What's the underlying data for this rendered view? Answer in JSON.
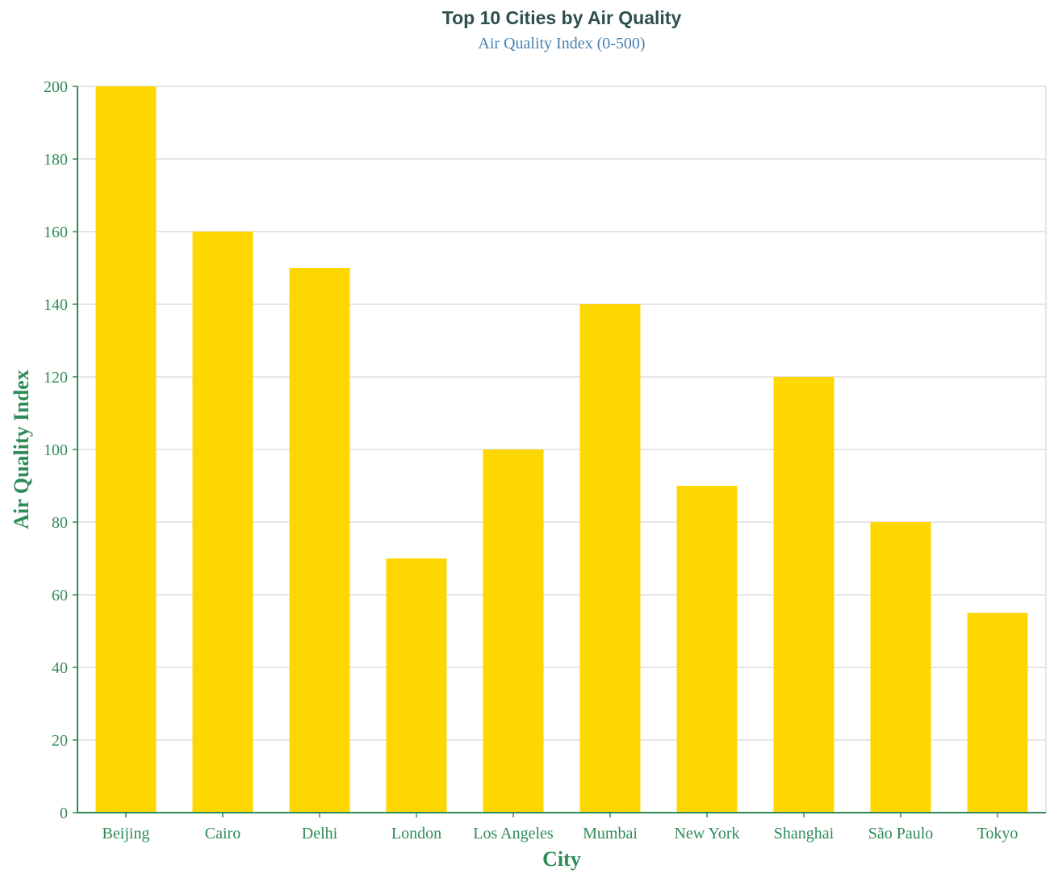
{
  "colors": {
    "title": "#2f4f4f",
    "subtitle": "#4682b4",
    "axis": "#2e8b57",
    "grid": "#dddddd",
    "bar": "#ffd700",
    "background": "#ffffff"
  },
  "chart_data": {
    "type": "bar",
    "title": "Top 10 Cities by Air Quality",
    "subtitle": "Air Quality Index (0-500)",
    "xlabel": "City",
    "ylabel": "Air Quality Index",
    "categories": [
      "Beijing",
      "Cairo",
      "Delhi",
      "London",
      "Los Angeles",
      "Mumbai",
      "New York",
      "Shanghai",
      "São Paulo",
      "Tokyo"
    ],
    "values": [
      200,
      160,
      150,
      70,
      100,
      140,
      90,
      120,
      80,
      55
    ],
    "ylim": [
      0,
      200
    ],
    "yticks": [
      0,
      20,
      40,
      60,
      80,
      100,
      120,
      140,
      160,
      180,
      200
    ],
    "grid": true,
    "legend": "none"
  }
}
